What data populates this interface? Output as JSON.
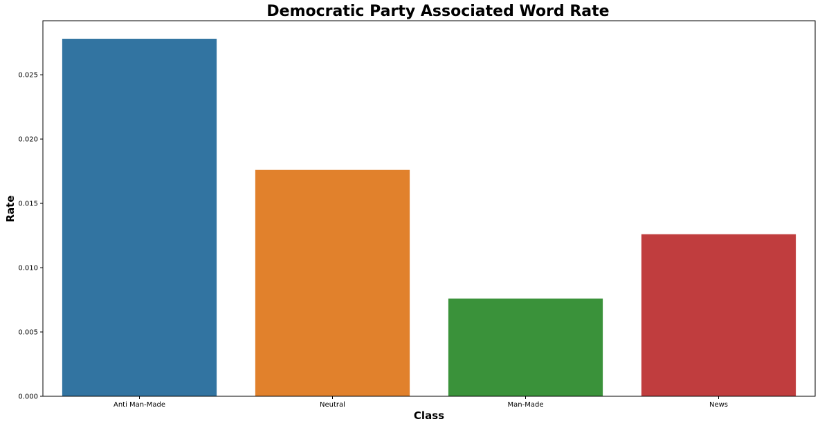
{
  "chart_data": {
    "type": "bar",
    "title": "Democratic Party Associated Word Rate",
    "xlabel": "Class",
    "ylabel": "Rate",
    "categories": [
      "Anti Man-Made",
      "Neutral",
      "Man-Made",
      "News"
    ],
    "values": [
      0.0278,
      0.0176,
      0.0076,
      0.0126
    ],
    "colors": [
      "#3274a1",
      "#e1812c",
      "#3a923a",
      "#c03d3e"
    ],
    "ylim": [
      0,
      0.0292
    ],
    "yticks": [
      0,
      0.005,
      0.01,
      0.015,
      0.02,
      0.025
    ],
    "ytick_labels": [
      "0.000",
      "0.005",
      "0.010",
      "0.015",
      "0.020",
      "0.025"
    ],
    "grid": false,
    "legend": "none"
  }
}
